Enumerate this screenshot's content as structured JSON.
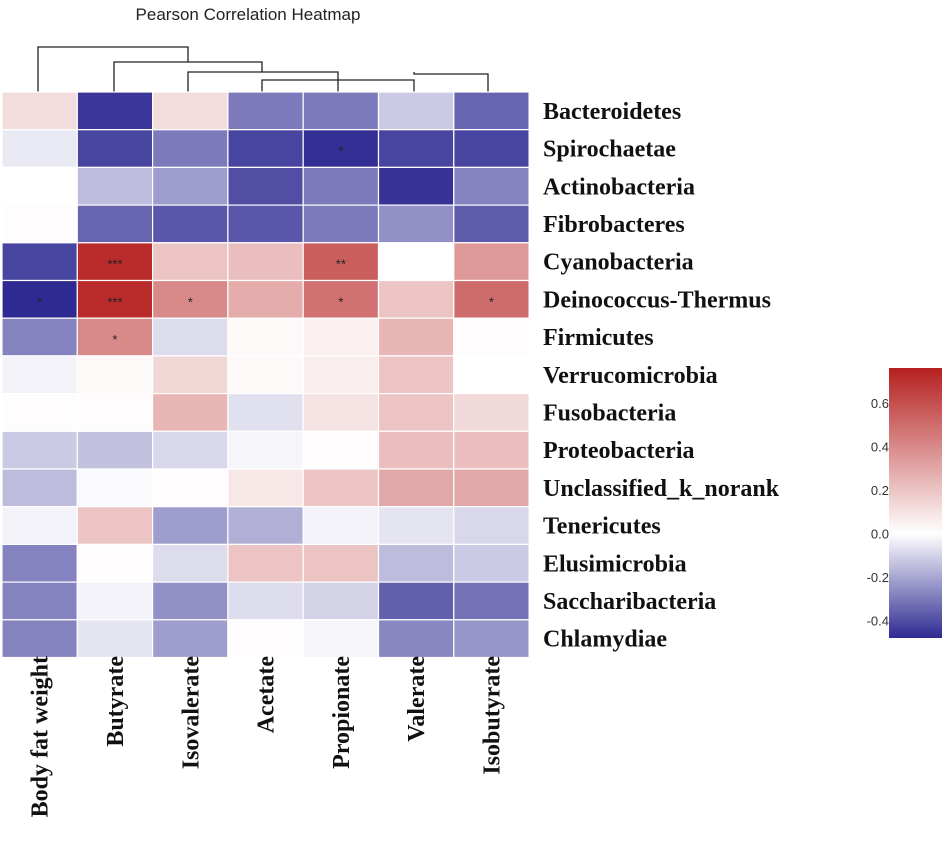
{
  "chart_data": {
    "type": "heatmap",
    "title": "Pearson Correlation Heatmap",
    "columns": [
      "Body fat weight",
      "Butyrate",
      "Isovalerate",
      "Acetate",
      "Propionate",
      "Valerate",
      "Isobutyrate"
    ],
    "rows": [
      "Bacteroidetes",
      "Spirochaetae",
      "Actinobacteria",
      "Fibrobacteres",
      "Cyanobacteria",
      "Deinococcus-Thermus",
      "Firmicutes",
      "Verrucomicrobia",
      "Fusobacteria",
      "Proteobacteria",
      "Unclassified_k_norank",
      "Tenericutes",
      "Elusimicrobia",
      "Saccharibacteria",
      "Chlamydiae"
    ],
    "values": [
      [
        0.12,
        -0.45,
        0.12,
        -0.3,
        -0.3,
        -0.12,
        -0.35
      ],
      [
        -0.05,
        -0.42,
        -0.3,
        -0.42,
        -0.47,
        -0.42,
        -0.42
      ],
      [
        0.0,
        -0.15,
        -0.22,
        -0.4,
        -0.3,
        -0.46,
        -0.28
      ],
      [
        0.01,
        -0.35,
        -0.38,
        -0.38,
        -0.3,
        -0.25,
        -0.37
      ],
      [
        -0.42,
        0.72,
        0.2,
        0.22,
        0.55,
        0.0,
        0.35
      ],
      [
        -0.48,
        0.72,
        0.4,
        0.28,
        0.48,
        0.2,
        0.5
      ],
      [
        -0.28,
        0.4,
        -0.08,
        0.02,
        0.05,
        0.25,
        0.01
      ],
      [
        -0.03,
        0.02,
        0.14,
        0.02,
        0.06,
        0.2,
        0.0
      ],
      [
        0.01,
        0.01,
        0.25,
        -0.07,
        0.1,
        0.2,
        0.13
      ],
      [
        -0.12,
        -0.14,
        -0.09,
        -0.02,
        0.01,
        0.22,
        0.22
      ],
      [
        -0.15,
        -0.01,
        0.01,
        0.08,
        0.2,
        0.3,
        0.3
      ],
      [
        -0.03,
        0.2,
        -0.22,
        -0.18,
        -0.03,
        -0.06,
        -0.09
      ],
      [
        -0.28,
        0.01,
        -0.08,
        0.2,
        0.2,
        -0.15,
        -0.12
      ],
      [
        -0.28,
        -0.03,
        -0.25,
        -0.08,
        -0.1,
        -0.36,
        -0.32
      ],
      [
        -0.28,
        -0.06,
        -0.22,
        0.01,
        -0.02,
        -0.27,
        -0.24
      ]
    ],
    "significance": [
      [
        "",
        "",
        "",
        "",
        "",
        "",
        ""
      ],
      [
        "",
        "",
        "",
        "",
        "*",
        "",
        ""
      ],
      [
        "",
        "",
        "",
        "",
        "",
        "",
        ""
      ],
      [
        "",
        "",
        "",
        "",
        "",
        "",
        ""
      ],
      [
        "",
        "***",
        "",
        "",
        "**",
        "",
        ""
      ],
      [
        "*",
        "***",
        "*",
        "",
        "*",
        "",
        "*"
      ],
      [
        "",
        "*",
        "",
        "",
        "",
        "",
        ""
      ],
      [
        "",
        "",
        "",
        "",
        "",
        "",
        ""
      ],
      [
        "",
        "",
        "",
        "",
        "",
        "",
        ""
      ],
      [
        "",
        "",
        "",
        "",
        "",
        "",
        ""
      ],
      [
        "",
        "",
        "",
        "",
        "",
        "",
        ""
      ],
      [
        "",
        "",
        "",
        "",
        "",
        "",
        ""
      ],
      [
        "",
        "",
        "",
        "",
        "",
        "",
        ""
      ],
      [
        "",
        "",
        "",
        "",
        "",
        "",
        ""
      ],
      [
        "",
        "",
        "",
        "",
        "",
        "",
        ""
      ]
    ],
    "colorbar": {
      "range": [
        -0.48,
        0.76
      ],
      "ticks": [
        0.6,
        0.4,
        0.2,
        0.0,
        -0.2,
        -0.4
      ],
      "tick_labels": [
        "0.6",
        "0.4",
        "0.2",
        "0.0",
        "-0.2",
        "-0.4"
      ],
      "low_color": "#2e2a92",
      "mid_color": "#ffffff",
      "high_color": "#b5201f"
    },
    "dendrogram": "column clustering tree"
  }
}
